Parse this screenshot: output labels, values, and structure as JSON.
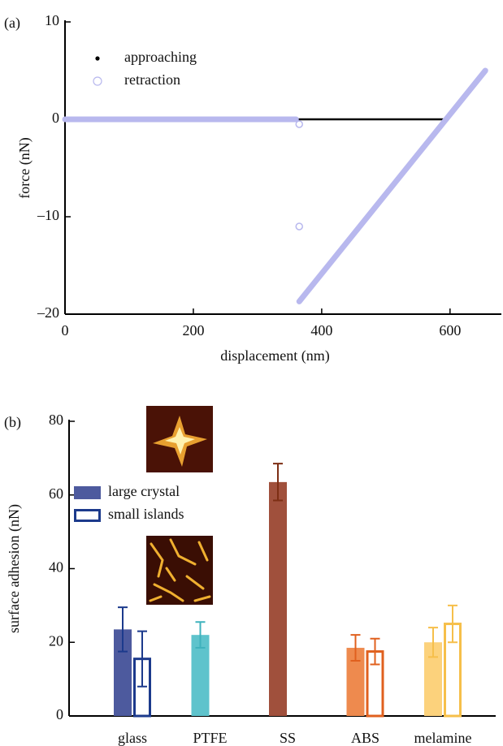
{
  "chart_data": [
    {
      "type": "line",
      "panel_label": "(a)",
      "xlabel": "displacement (nm)",
      "ylabel": "force (nN)",
      "xlim": [
        0,
        680
      ],
      "ylim": [
        -20,
        10
      ],
      "xticks": [
        0,
        200,
        400,
        600
      ],
      "yticks": [
        {
          "value": -20,
          "label": "–20"
        },
        {
          "value": -10,
          "label": "–10"
        },
        0,
        10
      ],
      "series": [
        {
          "name": "approaching",
          "color": "#000000",
          "marker": "dot",
          "x": [
            0,
            594,
            655
          ],
          "values": [
            0,
            0,
            5
          ]
        },
        {
          "name": "retraction",
          "color": "#b8b8ee",
          "marker": "open-circle",
          "x": [
            0,
            360,
            362,
            365,
            365,
            365,
            365,
            365,
            655
          ],
          "values": [
            0,
            0,
            null,
            -0.5,
            null,
            -11,
            null,
            -18.7,
            5
          ]
        }
      ]
    },
    {
      "type": "bar",
      "panel_label": "(b)",
      "ylabel": "surface adhesion (nN)",
      "categories": [
        "glass",
        "PTFE",
        "SS",
        "ABS",
        "melamine"
      ],
      "ylim": [
        0,
        80
      ],
      "yticks": [
        0,
        20,
        40,
        60,
        80
      ],
      "series": [
        {
          "name": "large crystal",
          "style": "filled",
          "colors": [
            "#4d5a9e",
            "#5ec3cc",
            "#a0503c",
            "#ee8a4e",
            "#fcd27c"
          ],
          "values": [
            23.5,
            22,
            63.5,
            18.5,
            20
          ],
          "errors": [
            6,
            3.5,
            5,
            3.5,
            4
          ]
        },
        {
          "name": "small islands",
          "style": "outline",
          "colors": [
            "#1c3a8c",
            "#3fb2bd",
            "#7d2e14",
            "#e0601e",
            "#f6bf4a"
          ],
          "values": [
            15.5,
            null,
            null,
            17.5,
            25
          ],
          "errors": [
            7.5,
            null,
            null,
            3.5,
            5
          ]
        }
      ]
    }
  ]
}
